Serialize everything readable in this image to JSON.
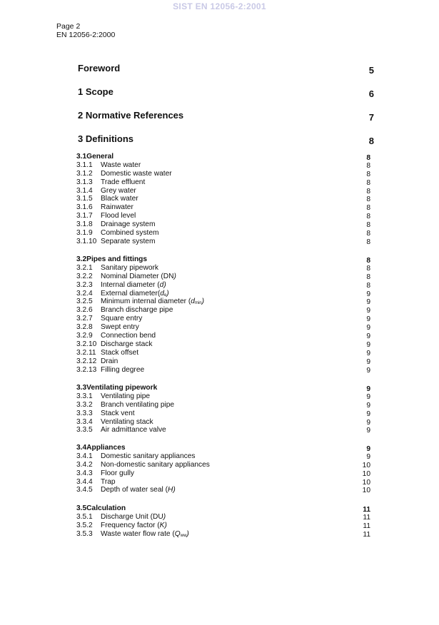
{
  "watermark": "SIST EN 12056-2:2001",
  "header": {
    "page": "Page 2",
    "standard": "EN 12056-2:2000"
  },
  "main_entries": [
    {
      "title": "Foreword",
      "page": "5"
    },
    {
      "title": "1  Scope",
      "page": "6"
    },
    {
      "title": "2  Normative References",
      "page": "7"
    },
    {
      "title": "3  Definitions",
      "page": "8"
    }
  ],
  "sections": [
    {
      "num": "3.1",
      "title": "General",
      "page": "8",
      "items": [
        {
          "num": "3.1.1",
          "title": "Waste water",
          "page": "8"
        },
        {
          "num": "3.1.2",
          "title": "Domestic waste water",
          "page": "8"
        },
        {
          "num": "3.1.3",
          "title": "Trade effluent",
          "page": "8"
        },
        {
          "num": "3.1.4",
          "title": "Grey water",
          "page": "8"
        },
        {
          "num": "3.1.5",
          "title": "Black water",
          "page": "8"
        },
        {
          "num": "3.1.6",
          "title": "Rainwater",
          "page": "8"
        },
        {
          "num": "3.1.7",
          "title": "Flood level",
          "page": "8"
        },
        {
          "num": "3.1.8",
          "title": "Drainage system",
          "page": "8"
        },
        {
          "num": "3.1.9",
          "title": "Combined system",
          "page": "8"
        },
        {
          "num": "3.1.10",
          "title": "Separate system",
          "page": "8"
        }
      ]
    },
    {
      "num": "3.2",
      "title": "Pipes and fittings",
      "page": "8",
      "items": [
        {
          "num": "3.2.1",
          "title": "Sanitary pipework",
          "page": "8"
        },
        {
          "num": "3.2.2",
          "title": "Nominal Diameter (DN",
          "after": ")",
          "page": "8"
        },
        {
          "num": "3.2.3",
          "title": "Internal diameter (",
          "var": "d",
          "after": ")",
          "page": "8"
        },
        {
          "num": "3.2.4",
          "title": "External diameter(",
          "var": "d",
          "sub": "e",
          "after": ")",
          "page": "9"
        },
        {
          "num": "3.2.5",
          "title": "Minimum internal diameter (",
          "var": "d",
          "sub": "min",
          "after": ")",
          "page": "9"
        },
        {
          "num": "3.2.6",
          "title": "Branch discharge pipe",
          "page": "9"
        },
        {
          "num": "3.2.7",
          "title": "Square entry",
          "page": "9"
        },
        {
          "num": "3.2.8",
          "title": "Swept entry",
          "page": "9"
        },
        {
          "num": "3.2.9",
          "title": "Connection bend",
          "page": "9"
        },
        {
          "num": "3.2.10",
          "title": "Discharge stack",
          "page": "9"
        },
        {
          "num": "3.2.11",
          "title": "Stack offset",
          "page": "9"
        },
        {
          "num": "3.2.12",
          "title": "Drain",
          "page": "9"
        },
        {
          "num": "3.2.13",
          "title": "Filling degree",
          "page": "9"
        }
      ]
    },
    {
      "num": "3.3",
      "title": "Ventilating pipework",
      "page": "9",
      "items": [
        {
          "num": "3.3.1",
          "title": "Ventilating pipe",
          "page": "9"
        },
        {
          "num": "3.3.2",
          "title": "Branch ventilating pipe",
          "page": "9"
        },
        {
          "num": "3.3.3",
          "title": "Stack vent",
          "page": "9"
        },
        {
          "num": "3.3.4",
          "title": "Ventilating stack",
          "page": "9"
        },
        {
          "num": "3.3.5",
          "title": "Air admittance valve",
          "page": "9"
        }
      ]
    },
    {
      "num": "3.4",
      "title": "Appliances",
      "page": "9",
      "items": [
        {
          "num": "3.4.1",
          "title": "Domestic sanitary appliances",
          "page": "9"
        },
        {
          "num": "3.4.2",
          "title": "Non-domestic sanitary appliances",
          "page": "10"
        },
        {
          "num": "3.4.3",
          "title": "Floor gully",
          "page": "10"
        },
        {
          "num": "3.4.4",
          "title": "Trap",
          "page": "10"
        },
        {
          "num": "3.4.5",
          "title": "Depth of water seal (",
          "var": "H",
          "after": ")",
          "page": "10"
        }
      ]
    },
    {
      "num": "3.5",
      "title": "Calculation",
      "page": "11",
      "items": [
        {
          "num": "3.5.1",
          "title": "Discharge Unit (DU",
          "after": ")",
          "page": "11"
        },
        {
          "num": "3.5.2",
          "title": "Frequency factor (",
          "var": "K",
          "after": ")",
          "page": "11"
        },
        {
          "num": "3.5.3",
          "title": "Waste water flow rate (",
          "var": "Q",
          "sub": "ww",
          "after": ")",
          "page": "11"
        }
      ]
    }
  ]
}
